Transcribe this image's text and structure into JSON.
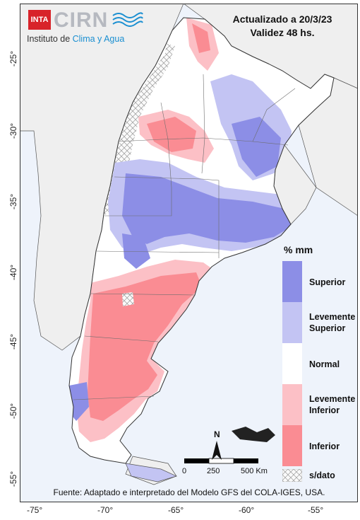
{
  "logo": {
    "inta": "INTA",
    "cirn": "CIRN",
    "institute_prefix": "Instituto de ",
    "institute_highlight": "Clima y Agua"
  },
  "header": {
    "updated": "Actualizado a 20/3/23",
    "validity": "Validez 48 hs."
  },
  "legend": {
    "unit": "% mm",
    "items": [
      {
        "label_1": "Superior",
        "label_2": "",
        "color": "#8c8ee6"
      },
      {
        "label_1": "Levemente",
        "label_2": "Superior",
        "color": "#c3c4f3"
      },
      {
        "label_1": "Normal",
        "label_2": "",
        "color": "#ffffff"
      },
      {
        "label_1": "Levemente",
        "label_2": "Inferior",
        "color": "#fcc0c6"
      },
      {
        "label_1": "Inferior",
        "label_2": "",
        "color": "#fa8c93"
      },
      {
        "label_1": "s/dato",
        "label_2": "",
        "color": "hatch"
      }
    ]
  },
  "scale_bar": {
    "label_0": "0",
    "label_mid": "250",
    "label_end": "500 Km"
  },
  "north": "N",
  "source": "Fuente: Adaptado e interpretado del Modelo GFS del COLA-IGES, USA.",
  "axes": {
    "x_ticks": [
      "-75°",
      "-70°",
      "-65°",
      "-60°",
      "-55°"
    ],
    "y_ticks": [
      "-25°",
      "-30°",
      "-35°",
      "-40°",
      "-45°",
      "-50°",
      "-55°"
    ]
  },
  "colors": {
    "superior": "#8c8ee6",
    "lev_superior": "#c3c4f3",
    "normal": "#ffffff",
    "lev_inferior": "#fcc0c6",
    "inferior": "#fa8c93",
    "neighbor_land": "#efefef",
    "ocean": "#eef3fb"
  }
}
